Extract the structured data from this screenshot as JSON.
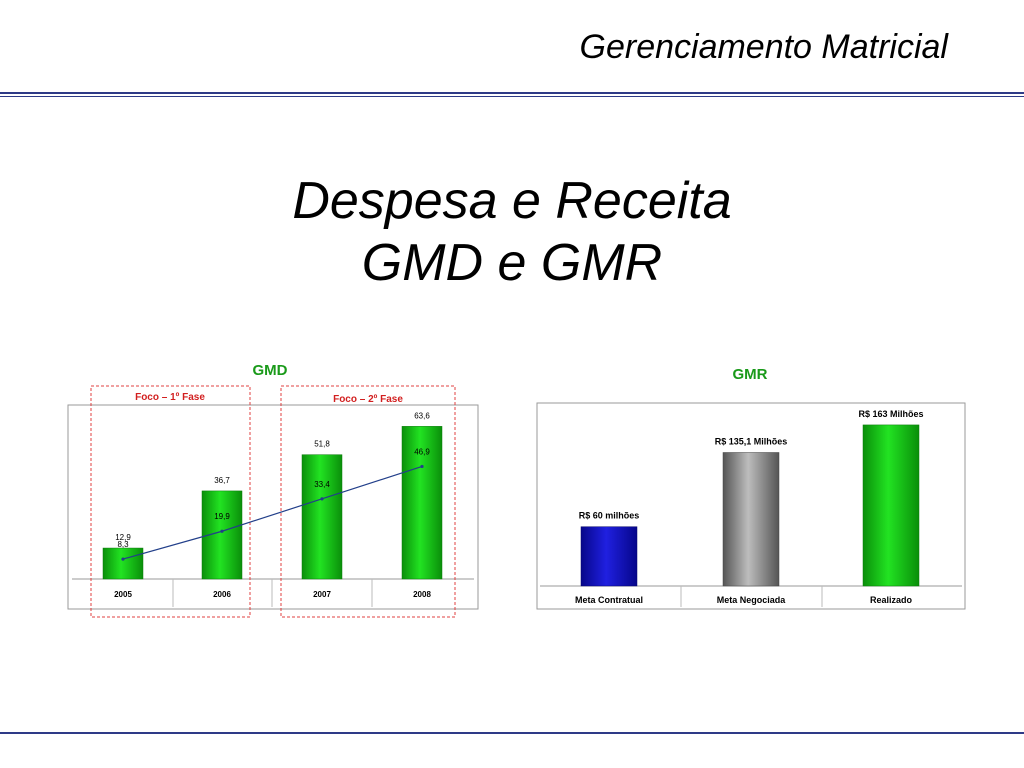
{
  "header": {
    "title": "Gerenciamento Matricial"
  },
  "slide": {
    "title_line1": "Despesa e Receita",
    "title_line2": "GMD e GMR"
  },
  "colors": {
    "accent_rule": "#2e3a87",
    "title_green": "#1a9a1a",
    "phase_red": "#d21f1f",
    "bar_green": "#12c912",
    "bar_blue": "#1010c8",
    "bar_gray": "#888888",
    "line_blue": "#223f8a"
  },
  "chart_data": [
    {
      "type": "bar",
      "title": "GMD",
      "categories": [
        "2005",
        "2006",
        "2007",
        "2008"
      ],
      "series": [
        {
          "type": "bar",
          "values": [
            12.9,
            36.7,
            51.8,
            63.6
          ],
          "labels": [
            "12,9",
            "36,7",
            "51,8",
            "63,6"
          ]
        },
        {
          "type": "line",
          "values": [
            8.3,
            19.9,
            33.4,
            46.9
          ],
          "labels": [
            "8,3",
            "19,9",
            "33,4",
            "46,9"
          ]
        }
      ],
      "annotations": [
        "Foco – 1º Fase",
        "Foco – 2º Fase"
      ],
      "ylim": [
        0,
        70
      ]
    },
    {
      "type": "bar",
      "title": "GMR",
      "categories": [
        "Meta Contratual",
        "Meta Negociada",
        "Realizado"
      ],
      "values": [
        60,
        135.1,
        163
      ],
      "labels": [
        "R$ 60 milhões",
        "R$ 135,1 Milhões",
        "R$ 163 Milhões"
      ],
      "bar_colors": [
        "blue",
        "gray",
        "green"
      ],
      "ylim": [
        0,
        170
      ]
    }
  ]
}
